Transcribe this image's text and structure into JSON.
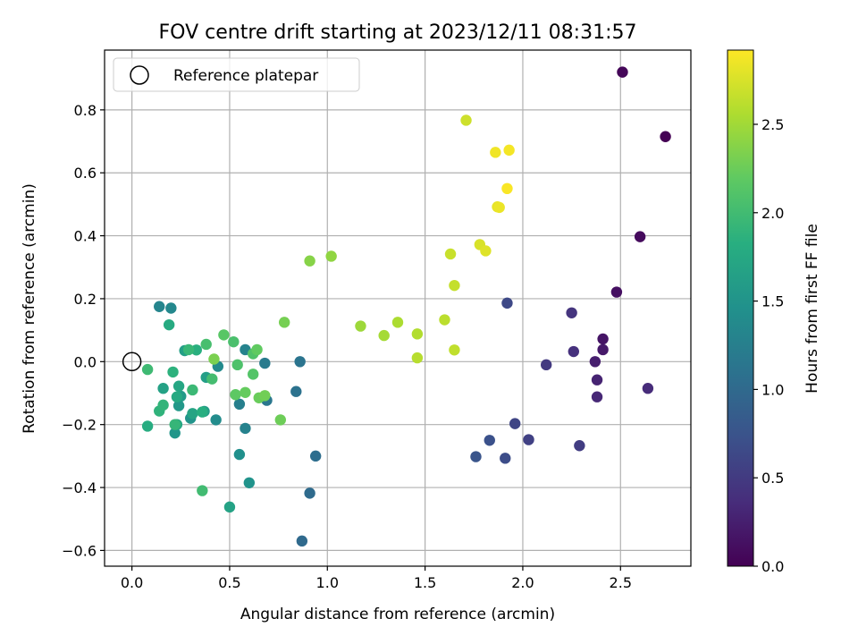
{
  "chart_data": {
    "type": "scatter",
    "title": "FOV centre drift starting at 2023/12/11 08:31:57",
    "xlabel": "Angular distance from reference (arcmin)",
    "ylabel": "Rotation from reference (arcmin)",
    "xlim": [
      -0.14,
      2.86
    ],
    "ylim": [
      -0.65,
      0.99
    ],
    "xticks": [
      "0.0",
      "0.5",
      "1.0",
      "1.5",
      "2.0",
      "2.5"
    ],
    "yticks": [
      "−0.6",
      "−0.4",
      "−0.2",
      "0.0",
      "0.2",
      "0.4",
      "0.6",
      "0.8"
    ],
    "grid": true,
    "legend": {
      "position": "top-left",
      "entries": [
        "Reference platepar"
      ]
    },
    "reference_point": {
      "x": 0.0,
      "y": 0.0
    },
    "colorbar": {
      "label": "Hours from first FF file",
      "colormap": "viridis",
      "range": [
        0.0,
        2.92
      ],
      "ticks": [
        "0.0",
        "0.5",
        "1.0",
        "1.5",
        "2.0",
        "2.5"
      ]
    },
    "points": [
      {
        "x": 2.73,
        "y": 0.715,
        "c": 0.0
      },
      {
        "x": 2.51,
        "y": 0.92,
        "c": 0.04
      },
      {
        "x": 2.6,
        "y": 0.397,
        "c": 0.08
      },
      {
        "x": 2.48,
        "y": 0.221,
        "c": 0.12
      },
      {
        "x": 2.41,
        "y": 0.072,
        "c": 0.16
      },
      {
        "x": 2.41,
        "y": 0.038,
        "c": 0.2
      },
      {
        "x": 2.37,
        "y": 0.0,
        "c": 0.24
      },
      {
        "x": 2.38,
        "y": -0.058,
        "c": 0.28
      },
      {
        "x": 2.38,
        "y": -0.112,
        "c": 0.32
      },
      {
        "x": 2.64,
        "y": -0.085,
        "c": 0.36
      },
      {
        "x": 2.26,
        "y": 0.032,
        "c": 0.4
      },
      {
        "x": 2.25,
        "y": 0.155,
        "c": 0.44
      },
      {
        "x": 2.12,
        "y": -0.01,
        "c": 0.48
      },
      {
        "x": 2.29,
        "y": -0.267,
        "c": 0.52
      },
      {
        "x": 2.03,
        "y": -0.248,
        "c": 0.56
      },
      {
        "x": 1.96,
        "y": -0.197,
        "c": 0.6
      },
      {
        "x": 1.92,
        "y": 0.186,
        "c": 0.64
      },
      {
        "x": 1.91,
        "y": -0.307,
        "c": 0.68
      },
      {
        "x": 1.83,
        "y": -0.25,
        "c": 0.72
      },
      {
        "x": 1.76,
        "y": -0.302,
        "c": 0.76
      },
      {
        "x": 0.87,
        "y": -0.57,
        "c": 1.0
      },
      {
        "x": 0.91,
        "y": -0.418,
        "c": 1.02
      },
      {
        "x": 0.94,
        "y": -0.3,
        "c": 1.05
      },
      {
        "x": 0.84,
        "y": -0.095,
        "c": 1.1
      },
      {
        "x": 0.86,
        "y": 0.0,
        "c": 1.12
      },
      {
        "x": 0.69,
        "y": -0.123,
        "c": 1.15
      },
      {
        "x": 0.68,
        "y": -0.005,
        "c": 1.2
      },
      {
        "x": 0.55,
        "y": -0.135,
        "c": 1.25
      },
      {
        "x": 0.58,
        "y": -0.212,
        "c": 1.28
      },
      {
        "x": 0.58,
        "y": 0.038,
        "c": 1.3
      },
      {
        "x": 0.14,
        "y": 0.175,
        "c": 1.32
      },
      {
        "x": 0.2,
        "y": 0.17,
        "c": 1.35
      },
      {
        "x": 0.44,
        "y": -0.015,
        "c": 1.38
      },
      {
        "x": 0.43,
        "y": -0.185,
        "c": 1.4
      },
      {
        "x": 0.55,
        "y": -0.295,
        "c": 1.45
      },
      {
        "x": 0.6,
        "y": -0.385,
        "c": 1.48
      },
      {
        "x": 0.3,
        "y": -0.18,
        "c": 1.5
      },
      {
        "x": 0.22,
        "y": -0.227,
        "c": 1.52
      },
      {
        "x": 0.24,
        "y": -0.14,
        "c": 1.55
      },
      {
        "x": 0.25,
        "y": -0.11,
        "c": 1.58
      },
      {
        "x": 0.37,
        "y": -0.158,
        "c": 1.6
      },
      {
        "x": 0.38,
        "y": -0.05,
        "c": 1.62
      },
      {
        "x": 0.27,
        "y": 0.035,
        "c": 1.64
      },
      {
        "x": 0.16,
        "y": -0.085,
        "c": 1.66
      },
      {
        "x": 0.5,
        "y": -0.462,
        "c": 1.68
      },
      {
        "x": 0.31,
        "y": -0.165,
        "c": 1.7
      },
      {
        "x": 0.24,
        "y": -0.078,
        "c": 1.72
      },
      {
        "x": 0.23,
        "y": -0.2,
        "c": 1.74
      },
      {
        "x": 0.23,
        "y": -0.112,
        "c": 1.76
      },
      {
        "x": 0.19,
        "y": 0.117,
        "c": 1.78
      },
      {
        "x": 0.08,
        "y": -0.205,
        "c": 1.8
      },
      {
        "x": 0.36,
        "y": -0.16,
        "c": 1.82
      },
      {
        "x": 0.33,
        "y": 0.037,
        "c": 1.84
      },
      {
        "x": 0.21,
        "y": -0.033,
        "c": 1.86
      },
      {
        "x": 0.14,
        "y": -0.157,
        "c": 1.88
      },
      {
        "x": 0.16,
        "y": -0.138,
        "c": 1.9
      },
      {
        "x": 0.22,
        "y": -0.2,
        "c": 1.92
      },
      {
        "x": 0.29,
        "y": 0.038,
        "c": 1.94
      },
      {
        "x": 0.31,
        "y": -0.09,
        "c": 1.96
      },
      {
        "x": 0.08,
        "y": -0.025,
        "c": 1.98
      },
      {
        "x": 0.36,
        "y": -0.41,
        "c": 2.0
      },
      {
        "x": 0.41,
        "y": -0.055,
        "c": 2.02
      },
      {
        "x": 0.38,
        "y": 0.055,
        "c": 2.04
      },
      {
        "x": 0.52,
        "y": 0.063,
        "c": 2.06
      },
      {
        "x": 0.54,
        "y": -0.01,
        "c": 2.08
      },
      {
        "x": 0.62,
        "y": 0.025,
        "c": 2.1
      },
      {
        "x": 0.62,
        "y": -0.04,
        "c": 2.12
      },
      {
        "x": 0.47,
        "y": 0.085,
        "c": 2.15
      },
      {
        "x": 0.53,
        "y": -0.105,
        "c": 2.18
      },
      {
        "x": 0.64,
        "y": 0.038,
        "c": 2.2
      },
      {
        "x": 0.58,
        "y": -0.098,
        "c": 2.22
      },
      {
        "x": 0.65,
        "y": -0.115,
        "c": 2.24
      },
      {
        "x": 0.76,
        "y": -0.185,
        "c": 2.26
      },
      {
        "x": 0.68,
        "y": -0.108,
        "c": 2.28
      },
      {
        "x": 0.78,
        "y": 0.125,
        "c": 2.3
      },
      {
        "x": 0.42,
        "y": 0.008,
        "c": 2.32
      },
      {
        "x": 0.91,
        "y": 0.32,
        "c": 2.38
      },
      {
        "x": 1.02,
        "y": 0.335,
        "c": 2.42
      },
      {
        "x": 1.17,
        "y": 0.113,
        "c": 2.48
      },
      {
        "x": 1.29,
        "y": 0.083,
        "c": 2.52
      },
      {
        "x": 1.36,
        "y": 0.125,
        "c": 2.55
      },
      {
        "x": 1.46,
        "y": 0.088,
        "c": 2.58
      },
      {
        "x": 1.46,
        "y": 0.012,
        "c": 2.6
      },
      {
        "x": 1.6,
        "y": 0.133,
        "c": 2.62
      },
      {
        "x": 1.65,
        "y": 0.037,
        "c": 2.64
      },
      {
        "x": 1.65,
        "y": 0.242,
        "c": 2.66
      },
      {
        "x": 1.63,
        "y": 0.342,
        "c": 2.68
      },
      {
        "x": 1.71,
        "y": 0.767,
        "c": 2.7
      },
      {
        "x": 1.78,
        "y": 0.372,
        "c": 2.75
      },
      {
        "x": 1.81,
        "y": 0.352,
        "c": 2.78
      },
      {
        "x": 1.87,
        "y": 0.492,
        "c": 2.82
      },
      {
        "x": 1.88,
        "y": 0.49,
        "c": 2.84
      },
      {
        "x": 1.86,
        "y": 0.665,
        "c": 2.86
      },
      {
        "x": 1.93,
        "y": 0.672,
        "c": 2.88
      },
      {
        "x": 1.92,
        "y": 0.55,
        "c": 2.9
      }
    ]
  }
}
